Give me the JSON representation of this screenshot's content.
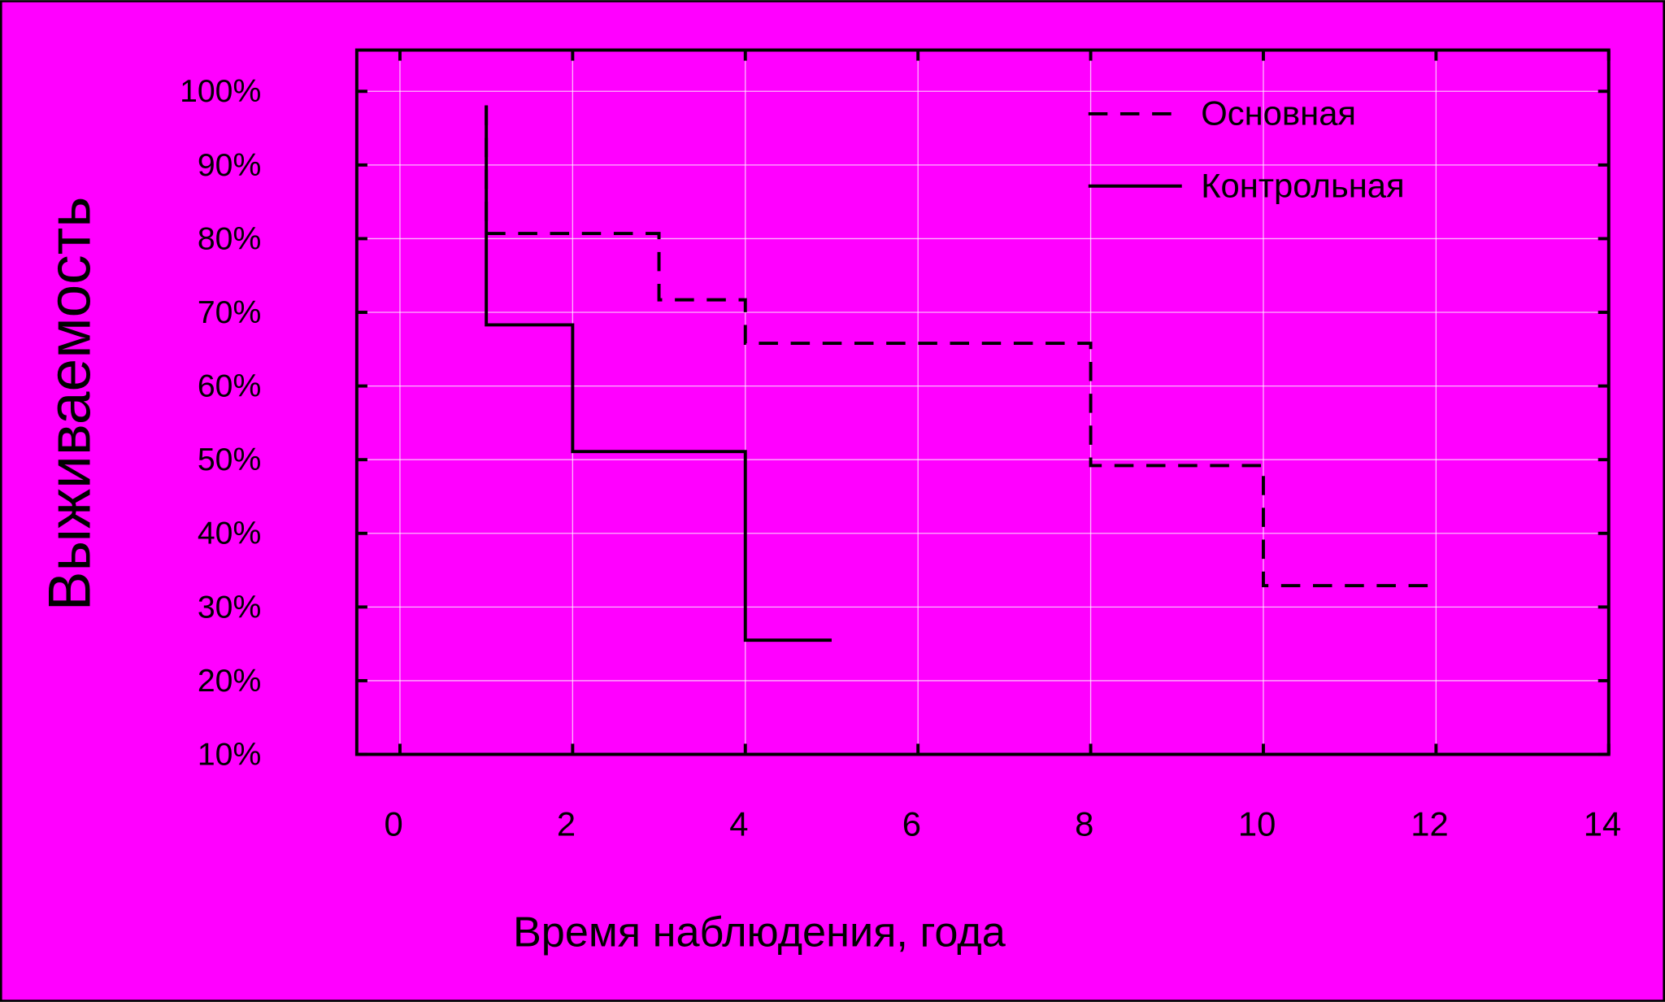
{
  "chart_data": {
    "type": "line",
    "xlabel": "Время наблюдения, года",
    "ylabel": "Выживаемость",
    "series": [
      {
        "name": "Основная",
        "color": "#000000",
        "dash": "dashed",
        "x": [
          1,
          1,
          3,
          3,
          4,
          4,
          8,
          8,
          10,
          10,
          12
        ],
        "values": [
          98,
          80.7,
          80.7,
          71.7,
          71.7,
          65.8,
          65.8,
          49.2,
          49.2,
          32.9,
          32.9
        ]
      },
      {
        "name": "Контрольная",
        "color": "#000000",
        "dash": "solid",
        "x": [
          1,
          1,
          2,
          2,
          4,
          4,
          5
        ],
        "values": [
          98.1,
          68.3,
          68.3,
          51.1,
          51.1,
          25.5,
          25.5
        ]
      }
    ],
    "xlim": [
      -0.5,
      14
    ],
    "xticks": [
      0,
      2,
      4,
      6,
      8,
      10,
      12,
      14
    ],
    "ylim": [
      10,
      105.6
    ],
    "yticks": [
      {
        "value": 10,
        "label": "10%"
      },
      {
        "value": 20,
        "label": "20%"
      },
      {
        "value": 30,
        "label": "30%"
      },
      {
        "value": 40,
        "label": "40%"
      },
      {
        "value": 50,
        "label": "50%"
      },
      {
        "value": 60,
        "label": "60%"
      },
      {
        "value": 70,
        "label": "70%"
      },
      {
        "value": 80,
        "label": "80%"
      },
      {
        "value": 90,
        "label": "90%"
      },
      {
        "value": 100,
        "label": "100%"
      }
    ],
    "grid": true,
    "legend": "upper right"
  }
}
